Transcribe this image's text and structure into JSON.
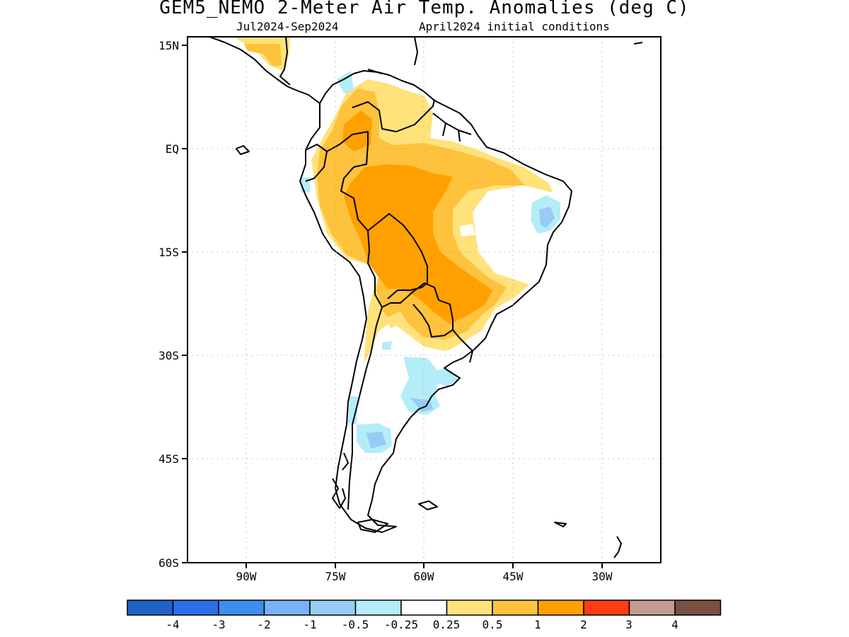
{
  "title": "GEM5_NEMO 2-Meter Air Temp. Anomalies (deg C)",
  "period": "Jul2024-Sep2024",
  "init": "April2024 initial conditions",
  "map": {
    "lat_labels": [
      "15N",
      "EQ",
      "15S",
      "30S",
      "45S",
      "60S"
    ],
    "lon_labels": [
      "90W",
      "75W",
      "60W",
      "45W",
      "30W"
    ],
    "lon_range": [
      "100W",
      "20W"
    ],
    "lat_range": [
      "15N",
      "60S"
    ],
    "gridlines": "dotted"
  },
  "colorbar": {
    "colors": [
      "#1f63c9",
      "#2a6ee8",
      "#3c8ef0",
      "#78b4f5",
      "#98ccf6",
      "#b4ecf8",
      "#ffffff",
      "#ffe27a",
      "#ffc23c",
      "#ffa000",
      "#ff3c14",
      "#c49c90",
      "#7a5041"
    ],
    "labels": [
      "-4",
      "-3",
      "-2",
      "-1",
      "-0.5",
      "-0.25",
      "0.25",
      "0.5",
      "1",
      "2",
      "3",
      "4"
    ]
  }
}
